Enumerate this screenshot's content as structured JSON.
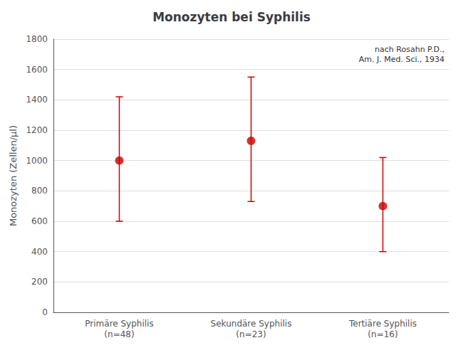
{
  "chart_data": {
    "type": "scatter",
    "title": "Monozyten bei Syphilis",
    "ylabel": "Monozyten (Zellen/µl)",
    "categories": [
      "Primäre Syphilis\n(n=48)",
      "Sekundäre Syphilis\n(n=23)",
      "Tertiäre Syphilis\n(n=16)"
    ],
    "values": [
      1000,
      1130,
      700
    ],
    "lower": [
      600,
      730,
      400
    ],
    "upper": [
      1420,
      1550,
      1020
    ],
    "color": "#cc0000",
    "ylim": [
      0,
      1800
    ],
    "yticks": [
      0,
      200,
      400,
      600,
      800,
      1000,
      1200,
      1400,
      1600,
      1800
    ],
    "grid": true,
    "annotation": "nach Rosahn P.D.,\nAm. J. Med. Sci., 1934"
  }
}
